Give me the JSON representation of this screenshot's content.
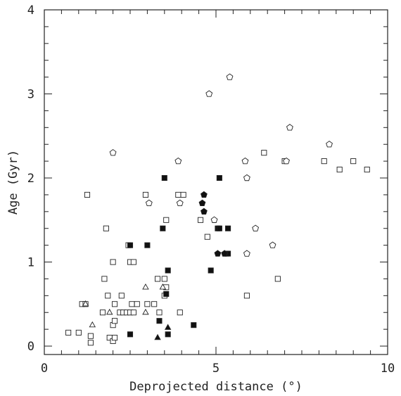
{
  "chart_data": {
    "type": "scatter",
    "title": "",
    "xlabel": "Deprojected distance (°)",
    "ylabel": "Age (Gyr)",
    "xlim": [
      0,
      10
    ],
    "ylim": [
      -0.1,
      4
    ],
    "xticks": [
      "0",
      "5",
      "10"
    ],
    "yticks": [
      "0",
      "1",
      "2",
      "3",
      "4"
    ],
    "grid": false,
    "legend": "none",
    "series": [
      {
        "marker": "open-square",
        "points": [
          [
            0.7,
            0.16
          ],
          [
            1.0,
            0.16
          ],
          [
            1.1,
            0.5
          ],
          [
            1.2,
            0.5
          ],
          [
            1.25,
            1.8
          ],
          [
            1.35,
            0.12
          ],
          [
            1.35,
            0.04
          ],
          [
            1.7,
            0.4
          ],
          [
            1.75,
            0.8
          ],
          [
            1.8,
            1.4
          ],
          [
            1.85,
            0.6
          ],
          [
            1.9,
            0.1
          ],
          [
            2.0,
            0.25
          ],
          [
            2.0,
            0.06
          ],
          [
            2.05,
            0.1
          ],
          [
            2.0,
            1.0
          ],
          [
            2.05,
            0.5
          ],
          [
            2.05,
            0.3
          ],
          [
            2.2,
            0.4
          ],
          [
            2.25,
            0.6
          ],
          [
            2.3,
            0.4
          ],
          [
            2.4,
            0.4
          ],
          [
            2.45,
            1.2
          ],
          [
            2.5,
            1.0
          ],
          [
            2.5,
            0.4
          ],
          [
            2.55,
            0.5
          ],
          [
            2.6,
            1.0
          ],
          [
            2.6,
            0.4
          ],
          [
            2.7,
            0.5
          ],
          [
            2.95,
            1.8
          ],
          [
            3.0,
            0.5
          ],
          [
            3.2,
            0.5
          ],
          [
            3.3,
            0.8
          ],
          [
            3.35,
            0.4
          ],
          [
            3.5,
            0.8
          ],
          [
            3.5,
            0.6
          ],
          [
            3.55,
            0.7
          ],
          [
            3.55,
            1.5
          ],
          [
            3.9,
            1.8
          ],
          [
            3.95,
            0.4
          ],
          [
            4.05,
            1.8
          ],
          [
            4.55,
            1.5
          ],
          [
            4.75,
            1.3
          ],
          [
            5.9,
            0.6
          ],
          [
            6.4,
            2.3
          ],
          [
            6.8,
            0.8
          ],
          [
            7.0,
            2.2
          ],
          [
            8.15,
            2.2
          ],
          [
            8.6,
            2.1
          ],
          [
            9.0,
            2.2
          ],
          [
            9.4,
            2.1
          ]
        ]
      },
      {
        "marker": "filled-square",
        "points": [
          [
            2.5,
            0.14
          ],
          [
            2.5,
            1.2
          ],
          [
            3.0,
            1.2
          ],
          [
            3.35,
            0.3
          ],
          [
            3.45,
            1.4
          ],
          [
            3.5,
            2.0
          ],
          [
            3.55,
            0.62
          ],
          [
            3.6,
            0.14
          ],
          [
            3.6,
            0.9
          ],
          [
            4.35,
            0.25
          ],
          [
            4.85,
            0.9
          ],
          [
            5.05,
            1.4
          ],
          [
            5.1,
            2.0
          ],
          [
            5.1,
            1.4
          ],
          [
            5.3,
            1.1
          ],
          [
            5.35,
            1.4
          ],
          [
            5.35,
            1.1
          ]
        ]
      },
      {
        "marker": "open-pentagon",
        "points": [
          [
            2.0,
            2.3
          ],
          [
            3.05,
            1.7
          ],
          [
            3.9,
            2.2
          ],
          [
            3.95,
            1.7
          ],
          [
            4.8,
            3.0
          ],
          [
            4.95,
            1.5
          ],
          [
            5.4,
            3.2
          ],
          [
            5.85,
            2.2
          ],
          [
            5.9,
            2.0
          ],
          [
            5.9,
            1.1
          ],
          [
            6.15,
            1.4
          ],
          [
            6.65,
            1.2
          ],
          [
            7.05,
            2.2
          ],
          [
            7.15,
            2.6
          ],
          [
            8.3,
            2.4
          ]
        ]
      },
      {
        "marker": "filled-pentagon",
        "points": [
          [
            4.6,
            1.7
          ],
          [
            4.65,
            1.6
          ],
          [
            4.65,
            1.8
          ],
          [
            5.05,
            1.1
          ],
          [
            5.25,
            1.1
          ]
        ]
      },
      {
        "marker": "open-triangle",
        "points": [
          [
            1.2,
            0.5
          ],
          [
            1.4,
            0.25
          ],
          [
            1.9,
            0.4
          ],
          [
            2.95,
            0.7
          ],
          [
            2.95,
            0.4
          ],
          [
            3.45,
            0.7
          ]
        ]
      },
      {
        "marker": "filled-triangle",
        "points": [
          [
            3.3,
            0.1
          ],
          [
            3.6,
            0.22
          ]
        ]
      }
    ]
  }
}
